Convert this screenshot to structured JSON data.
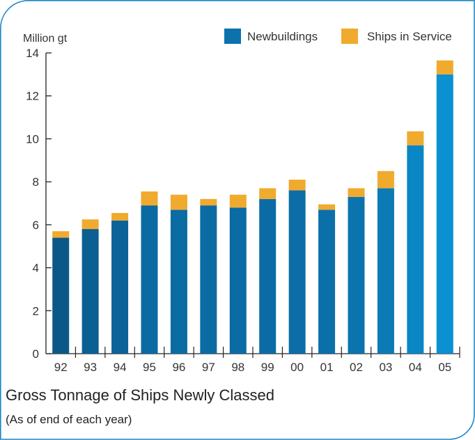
{
  "chart_data": {
    "type": "bar",
    "stacked": true,
    "title": "Gross Tonnage of Ships Newly Classed",
    "subtitle": "(As of end of each year)",
    "ylabel": "Million gt",
    "ylim": [
      0,
      14
    ],
    "yticks": [
      0,
      2,
      4,
      6,
      8,
      10,
      12,
      14
    ],
    "categories": [
      "92",
      "93",
      "94",
      "95",
      "96",
      "97",
      "98",
      "99",
      "00",
      "01",
      "02",
      "03",
      "04",
      "05"
    ],
    "series": [
      {
        "name": "Newbuildings",
        "color": "#0b72ad",
        "values": [
          5.4,
          5.8,
          6.2,
          6.9,
          6.7,
          6.9,
          6.8,
          7.2,
          7.6,
          6.7,
          7.3,
          7.7,
          9.7,
          13.0
        ]
      },
      {
        "name": "Ships in Service",
        "color": "#f0aa2e",
        "values": [
          0.3,
          0.45,
          0.35,
          0.65,
          0.7,
          0.3,
          0.6,
          0.5,
          0.5,
          0.25,
          0.4,
          0.8,
          0.65,
          0.65
        ]
      }
    ],
    "legend_position": "top-right",
    "grid": false,
    "bar_shades": [
      "#0b5888",
      "#0b5f93",
      "#0b6399",
      "#0b6aa2",
      "#0b6ba3",
      "#0b6ba3",
      "#0b6ba3",
      "#0b6ca5",
      "#0b6ea7",
      "#0b70aa",
      "#0b74af",
      "#0b7ab5",
      "#0b86c4",
      "#0b90d0"
    ]
  }
}
